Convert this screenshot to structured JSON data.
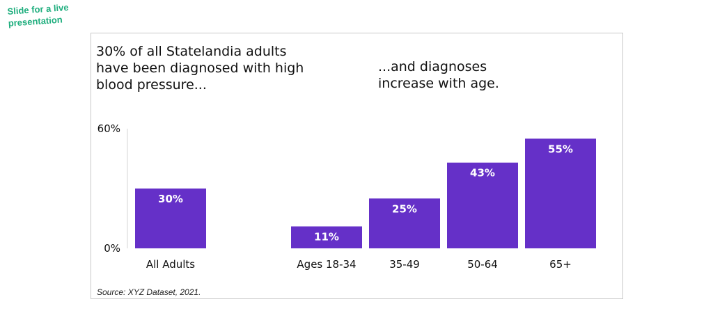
{
  "annotation": {
    "tag_text": "Slide for a live presentation"
  },
  "headlines": {
    "left": "30% of all Statelandia adults have been diagnosed with high blood pressure...",
    "right": "...and diagnoses increase with age."
  },
  "source": "Source: XYZ Dataset, 2021.",
  "colors": {
    "bar": "#6530c8",
    "tag": "#1fae7e"
  },
  "chart_data": {
    "type": "bar",
    "categories": [
      "All Adults",
      "Ages 18-34",
      "35-49",
      "50-64",
      "65+"
    ],
    "values": [
      30,
      11,
      25,
      43,
      55
    ],
    "value_labels": [
      "30%",
      "11%",
      "25%",
      "43%",
      "55%"
    ],
    "y_ticks": [
      "0%",
      "60%"
    ],
    "ylim": [
      0,
      60
    ],
    "grid": false,
    "legend": "none",
    "title": "",
    "xlabel": "",
    "ylabel": ""
  }
}
